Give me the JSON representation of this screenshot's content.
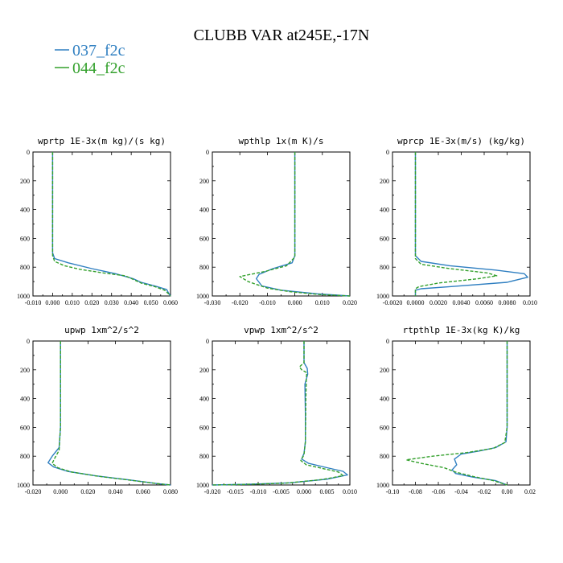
{
  "title": "CLUBB VAR at245E,-17N",
  "legend": [
    {
      "name": "037_f2c",
      "color": "#2f7fc1",
      "dash": "solid"
    },
    {
      "name": "044_f2c",
      "color": "#33a02c",
      "dash": "dashed"
    }
  ],
  "chart_data": [
    {
      "type": "line",
      "title": "wprtp  1E-3x(m kg)/(s kg)",
      "xlim": [
        -0.01,
        0.06
      ],
      "ylim": [
        1000,
        0
      ],
      "xticks": [
        "-0.010",
        "0.000",
        "0.010",
        "0.020",
        "0.030",
        "0.040",
        "0.050",
        "0.060"
      ],
      "xtick_values": [
        -0.01,
        0.0,
        0.01,
        0.02,
        0.03,
        0.04,
        0.05,
        0.06
      ],
      "yticks": [
        "0",
        "200",
        "400",
        "600",
        "800",
        "1000"
      ],
      "ytick_values": [
        0,
        200,
        400,
        600,
        800,
        1000
      ],
      "series": [
        {
          "name": "037_f2c",
          "points": [
            [
              0,
              0
            ],
            [
              0,
              600
            ],
            [
              0,
              700
            ],
            [
              0.001,
              740
            ],
            [
              0.008,
              770
            ],
            [
              0.02,
              810
            ],
            [
              0.032,
              845
            ],
            [
              0.041,
              880
            ],
            [
              0.045,
              905
            ],
            [
              0.052,
              930
            ],
            [
              0.058,
              955
            ],
            [
              0.059,
              980
            ],
            [
              0.06,
              1000
            ]
          ]
        },
        {
          "name": "044_f2c",
          "points": [
            [
              0,
              0
            ],
            [
              0,
              600
            ],
            [
              0,
              720
            ],
            [
              0.001,
              760
            ],
            [
              0.006,
              790
            ],
            [
              0.014,
              815
            ],
            [
              0.026,
              840
            ],
            [
              0.037,
              860
            ],
            [
              0.041,
              885
            ],
            [
              0.045,
              910
            ],
            [
              0.052,
              935
            ],
            [
              0.057,
              960
            ],
            [
              0.059,
              985
            ],
            [
              0.06,
              1000
            ]
          ]
        }
      ]
    },
    {
      "type": "line",
      "title": "wpthlp  1x(m K)/s",
      "xlim": [
        -0.03,
        0.02
      ],
      "ylim": [
        1000,
        0
      ],
      "xticks": [
        "-0.030",
        "-0.020",
        "-0.010",
        "0.000",
        "0.010",
        "0.020"
      ],
      "xtick_values": [
        -0.03,
        -0.02,
        -0.01,
        0.0,
        0.01,
        0.02
      ],
      "yticks": [
        "0",
        "200",
        "400",
        "600",
        "800",
        "1000"
      ],
      "ytick_values": [
        0,
        200,
        400,
        600,
        800,
        1000
      ],
      "series": [
        {
          "name": "037_f2c",
          "points": [
            [
              0,
              0
            ],
            [
              0,
              600
            ],
            [
              0,
              720
            ],
            [
              -0.001,
              770
            ],
            [
              -0.008,
              810
            ],
            [
              -0.013,
              850
            ],
            [
              -0.014,
              880
            ],
            [
              -0.012,
              930
            ],
            [
              -0.005,
              960
            ],
            [
              0.008,
              985
            ],
            [
              0.02,
              1000
            ]
          ]
        },
        {
          "name": "044_f2c",
          "points": [
            [
              0,
              0
            ],
            [
              0,
              600
            ],
            [
              0,
              730
            ],
            [
              -0.003,
              790
            ],
            [
              -0.011,
              830
            ],
            [
              -0.02,
              865
            ],
            [
              -0.017,
              900
            ],
            [
              -0.01,
              945
            ],
            [
              -0.002,
              970
            ],
            [
              0.009,
              990
            ],
            [
              0.02,
              1000
            ]
          ]
        }
      ]
    },
    {
      "type": "line",
      "title": "wprcp  1E-3x(m/s) (kg/kg)",
      "xlim": [
        -0.002,
        0.01
      ],
      "ylim": [
        1000,
        0
      ],
      "xticks": [
        "-0.0020",
        "0.0000",
        "0.0020",
        "0.0040",
        "0.0060",
        "0.0080",
        "0.010"
      ],
      "xtick_values": [
        -0.002,
        0.0,
        0.002,
        0.004,
        0.006,
        0.008,
        0.01
      ],
      "yticks": [
        "0",
        "200",
        "400",
        "600",
        "800",
        "1000"
      ],
      "ytick_values": [
        0,
        200,
        400,
        600,
        800,
        1000
      ],
      "series": [
        {
          "name": "037_f2c",
          "points": [
            [
              0,
              0
            ],
            [
              0,
              650
            ],
            [
              0,
              720
            ],
            [
              0.0005,
              760
            ],
            [
              0.003,
              790
            ],
            [
              0.007,
              820
            ],
            [
              0.0095,
              845
            ],
            [
              0.0098,
              870
            ],
            [
              0.008,
              905
            ],
            [
              0.003,
              935
            ],
            [
              0.0005,
              950
            ],
            [
              0,
              960
            ],
            [
              0,
              1000
            ]
          ]
        },
        {
          "name": "044_f2c",
          "points": [
            [
              0,
              0
            ],
            [
              0,
              650
            ],
            [
              0,
              740
            ],
            [
              0.0005,
              780
            ],
            [
              0.003,
              810
            ],
            [
              0.0063,
              840
            ],
            [
              0.0071,
              860
            ],
            [
              0.0055,
              880
            ],
            [
              0.002,
              910
            ],
            [
              0.0003,
              935
            ],
            [
              0,
              950
            ],
            [
              0,
              1000
            ]
          ]
        }
      ]
    },
    {
      "type": "line",
      "title": "upwp  1xm^2/s^2",
      "xlim": [
        -0.02,
        0.08
      ],
      "ylim": [
        1000,
        0
      ],
      "xticks": [
        "-0.020",
        "0.000",
        "0.020",
        "0.040",
        "0.060",
        "0.080"
      ],
      "xtick_values": [
        -0.02,
        0.0,
        0.02,
        0.04,
        0.06,
        0.08
      ],
      "yticks": [
        "0",
        "200",
        "400",
        "600",
        "800",
        "1000"
      ],
      "ytick_values": [
        0,
        200,
        400,
        600,
        800,
        1000
      ],
      "series": [
        {
          "name": "037_f2c",
          "points": [
            [
              0,
              0
            ],
            [
              0,
              600
            ],
            [
              -0.001,
              740
            ],
            [
              -0.006,
              800
            ],
            [
              -0.009,
              845
            ],
            [
              -0.005,
              875
            ],
            [
              0.005,
              905
            ],
            [
              0.025,
              935
            ],
            [
              0.05,
              965
            ],
            [
              0.07,
              990
            ],
            [
              0.08,
              1000
            ]
          ]
        },
        {
          "name": "044_f2c",
          "points": [
            [
              0,
              0
            ],
            [
              0,
              600
            ],
            [
              -0.001,
              760
            ],
            [
              -0.004,
              810
            ],
            [
              -0.006,
              850
            ],
            [
              -0.002,
              880
            ],
            [
              0.008,
              910
            ],
            [
              0.028,
              940
            ],
            [
              0.052,
              968
            ],
            [
              0.072,
              992
            ],
            [
              0.08,
              1000
            ]
          ]
        }
      ]
    },
    {
      "type": "line",
      "title": "vpwp  1xm^2/s^2",
      "xlim": [
        -0.02,
        0.01
      ],
      "ylim": [
        1000,
        0
      ],
      "xticks": [
        "-0.020",
        "-0.015",
        "-0.010",
        "-0.005",
        "0.000",
        "0.005",
        "0.010"
      ],
      "xtick_values": [
        -0.02,
        -0.015,
        -0.01,
        -0.005,
        0.0,
        0.005,
        0.01
      ],
      "yticks": [
        "0",
        "200",
        "400",
        "600",
        "800",
        "1000"
      ],
      "ytick_values": [
        0,
        200,
        400,
        600,
        800,
        1000
      ],
      "series": [
        {
          "name": "037_f2c",
          "points": [
            [
              0,
              0
            ],
            [
              0,
              150
            ],
            [
              0.0007,
              190
            ],
            [
              0.0008,
              230
            ],
            [
              0.0002,
              300
            ],
            [
              0.0003,
              500
            ],
            [
              0.0003,
              700
            ],
            [
              0,
              780
            ],
            [
              -0.0005,
              820
            ],
            [
              0.001,
              850
            ],
            [
              0.005,
              880
            ],
            [
              0.0085,
              905
            ],
            [
              0.0095,
              930
            ],
            [
              0.005,
              960
            ],
            [
              -0.003,
              985
            ],
            [
              -0.012,
              995
            ],
            [
              -0.02,
              1000
            ]
          ]
        },
        {
          "name": "044_f2c",
          "points": [
            [
              0,
              0
            ],
            [
              0,
              150
            ],
            [
              -0.001,
              180
            ],
            [
              -0.0005,
              200
            ],
            [
              0.0006,
              220
            ],
            [
              0.0005,
              260
            ],
            [
              0.0004,
              400
            ],
            [
              0.0003,
              700
            ],
            [
              0,
              790
            ],
            [
              -0.0007,
              830
            ],
            [
              0.0005,
              860
            ],
            [
              0.004,
              885
            ],
            [
              0.0075,
              910
            ],
            [
              0.0085,
              935
            ],
            [
              0.004,
              962
            ],
            [
              -0.004,
              987
            ],
            [
              -0.013,
              996
            ],
            [
              -0.02,
              1000
            ]
          ]
        }
      ]
    },
    {
      "type": "line",
      "title": "rtpthlp  1E-3x(kg K)/kg",
      "xlim": [
        -0.1,
        0.02
      ],
      "ylim": [
        1000,
        0
      ],
      "xticks": [
        "-0.10",
        "-0.08",
        "-0.06",
        "-0.04",
        "-0.02",
        "0.00",
        "0.02"
      ],
      "xtick_values": [
        -0.1,
        -0.08,
        -0.06,
        -0.04,
        -0.02,
        0.0,
        0.02
      ],
      "yticks": [
        "0",
        "200",
        "400",
        "600",
        "800",
        "1000"
      ],
      "ytick_values": [
        0,
        200,
        400,
        600,
        800,
        1000
      ],
      "series": [
        {
          "name": "037_f2c",
          "points": [
            [
              0,
              0
            ],
            [
              0,
              600
            ],
            [
              -0.001,
              700
            ],
            [
              -0.01,
              740
            ],
            [
              -0.025,
              765
            ],
            [
              -0.04,
              785
            ],
            [
              -0.046,
              820
            ],
            [
              -0.044,
              860
            ],
            [
              -0.048,
              895
            ],
            [
              -0.045,
              920
            ],
            [
              -0.03,
              945
            ],
            [
              -0.01,
              970
            ],
            [
              0,
              1000
            ]
          ]
        },
        {
          "name": "044_f2c",
          "points": [
            [
              0,
              0
            ],
            [
              0,
              600
            ],
            [
              -0.002,
              705
            ],
            [
              -0.012,
              745
            ],
            [
              -0.035,
              775
            ],
            [
              -0.065,
              800
            ],
            [
              -0.088,
              825
            ],
            [
              -0.075,
              850
            ],
            [
              -0.055,
              880
            ],
            [
              -0.045,
              910
            ],
            [
              -0.03,
              940
            ],
            [
              -0.012,
              970
            ],
            [
              0,
              1000
            ]
          ]
        }
      ]
    }
  ]
}
